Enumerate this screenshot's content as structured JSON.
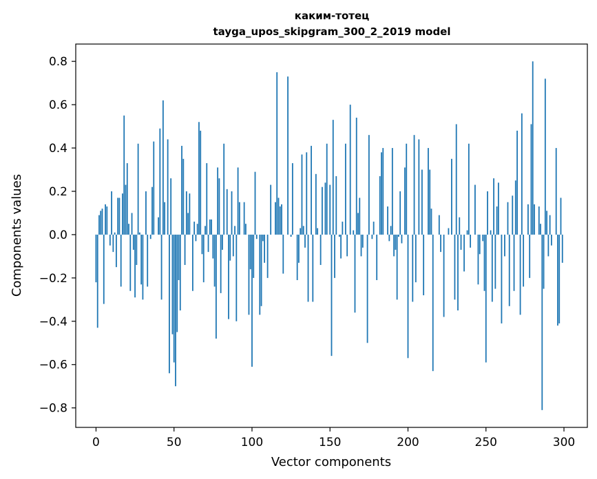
{
  "chart_data": {
    "type": "bar",
    "title": "каким-тотец",
    "subtitle": "tayga_upos_skipgram_300_2_2019 model",
    "xlabel": "Vector components",
    "ylabel": "Components values",
    "xlim": [
      -13,
      315
    ],
    "ylim": [
      -0.89,
      0.88
    ],
    "xticks": [
      0,
      50,
      100,
      150,
      200,
      250,
      300
    ],
    "yticks": [
      0.8,
      0.6,
      0.4,
      0.2,
      0.0,
      -0.2,
      -0.4,
      -0.6,
      -0.8
    ],
    "ytick_labels": [
      "0.8",
      "0.6",
      "0.4",
      "0.2",
      "0.0",
      "−0.2",
      "−0.4",
      "−0.6",
      "−0.8"
    ],
    "series": [
      {
        "name": "components",
        "color": "#1f77b4",
        "values": [
          -0.22,
          -0.43,
          0.09,
          0.11,
          0.12,
          -0.32,
          0.14,
          0.13,
          0.0,
          -0.05,
          0.2,
          -0.08,
          0.01,
          -0.15,
          0.17,
          0.17,
          -0.24,
          0.19,
          0.55,
          0.23,
          0.33,
          0.05,
          -0.26,
          0.1,
          -0.07,
          -0.29,
          -0.14,
          0.42,
          0.01,
          -0.23,
          -0.3,
          0.0,
          0.2,
          -0.24,
          0.0,
          -0.02,
          0.22,
          0.43,
          0.0,
          0.0,
          0.08,
          0.49,
          -0.3,
          0.62,
          0.15,
          0.0,
          0.44,
          -0.64,
          0.26,
          -0.46,
          -0.59,
          -0.7,
          -0.45,
          -0.21,
          -0.35,
          0.41,
          0.35,
          -0.14,
          0.2,
          0.1,
          0.19,
          0.0,
          -0.26,
          0.06,
          -0.03,
          0.05,
          0.52,
          0.48,
          -0.09,
          -0.22,
          0.04,
          0.33,
          -0.08,
          0.07,
          0.07,
          -0.11,
          -0.24,
          -0.48,
          0.31,
          0.26,
          -0.27,
          -0.07,
          0.42,
          0.0,
          0.21,
          -0.39,
          -0.12,
          0.2,
          -0.1,
          0.04,
          -0.4,
          0.31,
          0.15,
          0.0,
          0.0,
          0.15,
          0.05,
          0.0,
          -0.37,
          -0.16,
          -0.61,
          -0.2,
          0.29,
          -0.02,
          0.0,
          -0.37,
          -0.33,
          -0.03,
          -0.13,
          0.0,
          -0.2,
          0.0,
          0.23,
          0.0,
          0.0,
          0.15,
          0.75,
          0.17,
          0.13,
          0.14,
          -0.18,
          0.0,
          0.0,
          0.73,
          0.0,
          -0.01,
          0.33,
          0.0,
          0.0,
          -0.21,
          -0.13,
          0.03,
          0.37,
          0.04,
          -0.06,
          0.38,
          -0.31,
          0.0,
          0.41,
          -0.31,
          0.0,
          0.28,
          0.03,
          0.0,
          -0.14,
          0.22,
          0.0,
          0.24,
          0.42,
          0.0,
          0.23,
          -0.56,
          0.53,
          -0.2,
          0.27,
          0.0,
          -0.01,
          -0.11,
          0.06,
          0.0,
          0.42,
          -0.1,
          0.0,
          0.6,
          0.0,
          0.02,
          -0.36,
          0.54,
          0.1,
          0.17,
          -0.1,
          -0.06,
          0.0,
          0.0,
          -0.5,
          0.46,
          0.0,
          -0.02,
          0.06,
          0.0,
          -0.21,
          0.0,
          0.27,
          0.38,
          0.4,
          0.0,
          0.0,
          0.13,
          -0.03,
          0.04,
          0.4,
          -0.1,
          -0.07,
          -0.3,
          -0.01,
          0.2,
          -0.04,
          0.0,
          0.31,
          0.42,
          -0.57,
          0.0,
          0.0,
          -0.31,
          0.46,
          -0.22,
          0.0,
          0.44,
          0.0,
          0.3,
          -0.28,
          0.0,
          0.0,
          0.4,
          0.3,
          0.12,
          -0.63,
          0.0,
          0.0,
          0.0,
          0.09,
          -0.08,
          0.0,
          -0.38,
          0.0,
          0.0,
          0.03,
          0.0,
          0.35,
          0.0,
          -0.3,
          0.51,
          -0.35,
          0.08,
          -0.07,
          0.0,
          -0.17,
          0.0,
          0.02,
          0.42,
          -0.06,
          0.0,
          0.0,
          0.23,
          0.0,
          -0.23,
          -0.09,
          0.0,
          -0.03,
          -0.26,
          -0.59,
          0.2,
          0.0,
          0.02,
          -0.31,
          0.26,
          -0.25,
          0.13,
          0.24,
          0.0,
          -0.41,
          0.0,
          -0.1,
          0.0,
          0.15,
          -0.33,
          0.0,
          0.18,
          -0.26,
          0.25,
          0.48,
          0.0,
          -0.37,
          0.56,
          -0.24,
          0.0,
          0.0,
          0.14,
          -0.2,
          0.51,
          0.8,
          0.14,
          0.0,
          0.0,
          0.13,
          0.05,
          -0.81,
          -0.25,
          0.72,
          0.11,
          -0.1,
          0.09,
          -0.05,
          0.0,
          0.0,
          0.4,
          -0.42,
          -0.41,
          0.17,
          -0.13
        ]
      }
    ]
  }
}
